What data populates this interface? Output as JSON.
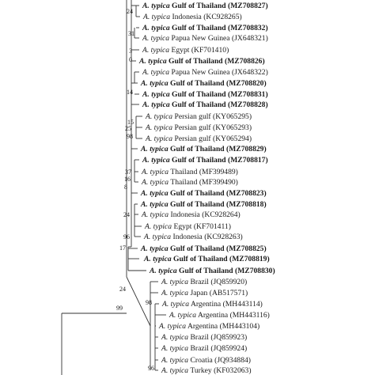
{
  "tree": {
    "leaves": [
      {
        "sp": "A. typica",
        "loc": "Gulf of Thailand",
        "acc": "(MZ708827)",
        "bold": true
      },
      {
        "sp": "A. typica",
        "loc": "Indonesia",
        "acc": "(KC928265)",
        "bold": false
      },
      {
        "sp": "A. typica",
        "loc": "Gulf of Thailand",
        "acc": "(MZ708832)",
        "bold": true
      },
      {
        "sp": "A. typica",
        "loc": "Papua New Guinea",
        "acc": "(JX648321)",
        "bold": false
      },
      {
        "sp": "A. typica",
        "loc": "Egypt",
        "acc": "(KF701410)",
        "bold": false
      },
      {
        "sp": "A. typica",
        "loc": "Gulf of Thailand",
        "acc": "(MZ708826)",
        "bold": true
      },
      {
        "sp": "A. typica",
        "loc": "Papua New Guinea",
        "acc": "(JX648322)",
        "bold": false
      },
      {
        "sp": "A. typica",
        "loc": "Gulf of Thailand",
        "acc": "(MZ708820)",
        "bold": true
      },
      {
        "sp": "A. typica",
        "loc": "Gulf of Thailand",
        "acc": "(MZ708831)",
        "bold": true
      },
      {
        "sp": "A. typica",
        "loc": "Gulf of Thailand",
        "acc": "(MZ708828)",
        "bold": true
      },
      {
        "sp": "A. typica",
        "loc": "Persian gulf",
        "acc": "(KY065295)",
        "bold": false
      },
      {
        "sp": "A. typica",
        "loc": "Persian gulf",
        "acc": "(KY065293)",
        "bold": false
      },
      {
        "sp": "A. typica",
        "loc": "Persian gulf",
        "acc": "(KY065294)",
        "bold": false
      },
      {
        "sp": "A. typica",
        "loc": "Gulf of Thailand",
        "acc": "(MZ708829)",
        "bold": true
      },
      {
        "sp": "A. typica",
        "loc": "Gulf of Thailand",
        "acc": "(MZ708817)",
        "bold": true
      },
      {
        "sp": "A. typica",
        "loc": "Thailand",
        "acc": "(MF399489)",
        "bold": false
      },
      {
        "sp": "A. typica",
        "loc": "Thailand",
        "acc": "(MF399490)",
        "bold": false
      },
      {
        "sp": "A. typica",
        "loc": "Gulf of Thailand",
        "acc": "(MZ708823)",
        "bold": true
      },
      {
        "sp": "A. typica",
        "loc": "Gulf of Thailand",
        "acc": "(MZ708818)",
        "bold": true
      },
      {
        "sp": "A. typica",
        "loc": "Indonesia",
        "acc": "(KC928264)",
        "bold": false
      },
      {
        "sp": "A. typica",
        "loc": "Egypt",
        "acc": "(KF701411)",
        "bold": false
      },
      {
        "sp": "A. typica",
        "loc": "Indonesia",
        "acc": "(KC928263)",
        "bold": false
      },
      {
        "sp": "A. typica",
        "loc": "Gulf of Thailand",
        "acc": "(MZ708825)",
        "bold": true
      },
      {
        "sp": "A. typica",
        "loc": "Gulf of Thailand",
        "acc": "(MZ708819)",
        "bold": true
      },
      {
        "sp": "A. typica",
        "loc": "Gulf of Thailand",
        "acc": "(MZ708830)",
        "bold": true
      },
      {
        "sp": "A. typica",
        "loc": "Brazil",
        "acc": "(JQ859920)",
        "bold": false
      },
      {
        "sp": "A. typica",
        "loc": "Japan",
        "acc": "(AB517571)",
        "bold": false
      },
      {
        "sp": "A. typica",
        "loc": "Argentina",
        "acc": "(MH443114)",
        "bold": false
      },
      {
        "sp": "A. typica",
        "loc": "Argentina",
        "acc": "(MH443116)",
        "bold": false
      },
      {
        "sp": "A. typica",
        "loc": "Argentina",
        "acc": "(MH443104)",
        "bold": false
      },
      {
        "sp": "A. typica",
        "loc": "Brazil",
        "acc": "(JQ859923)",
        "bold": false
      },
      {
        "sp": "A. typica",
        "loc": "Brazil",
        "acc": "(JQ859924)",
        "bold": false
      },
      {
        "sp": "A. typica",
        "loc": "Croatia",
        "acc": "(JQ934884)",
        "bold": false
      },
      {
        "sp": "A. typica",
        "loc": "Turkey",
        "acc": "(KF032063)",
        "bold": false
      }
    ],
    "support": [
      "24",
      "31",
      "3",
      "0",
      "14",
      "15",
      "25",
      "98",
      "37",
      "16",
      "8",
      "24",
      "96",
      "17",
      "24",
      "99",
      "98",
      "96"
    ]
  }
}
